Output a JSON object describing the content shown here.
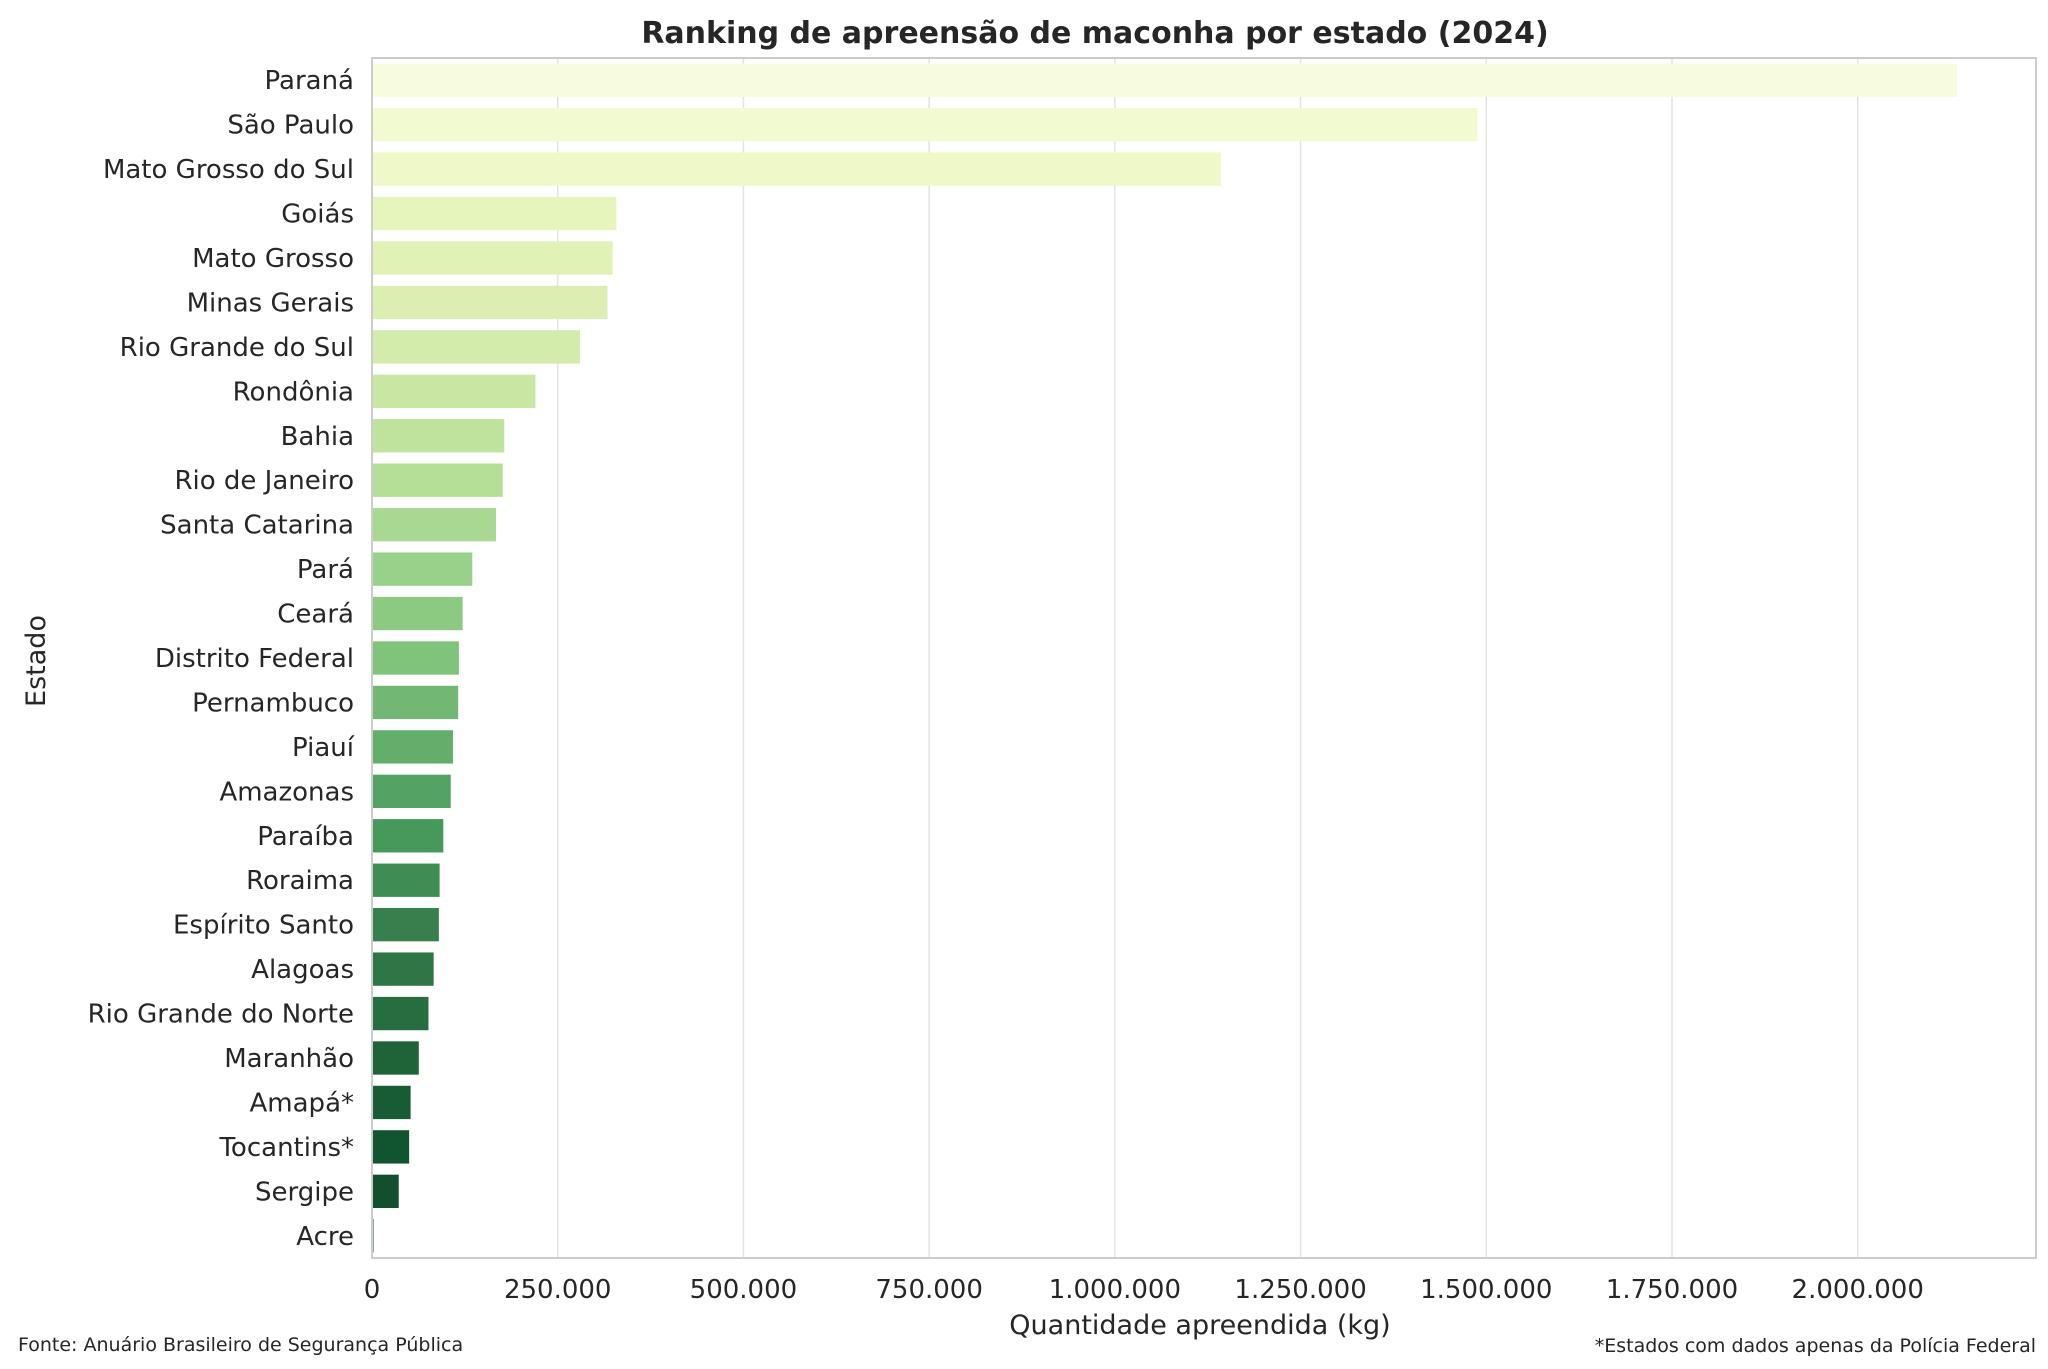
{
  "chart_data": {
    "type": "bar",
    "orientation": "horizontal",
    "title": "Ranking de apreensão de maconha por estado (2024)",
    "xlabel": "Quantidade apreendida (kg)",
    "ylabel": "Estado",
    "xlim": [
      0,
      2240000
    ],
    "xticks": [
      0,
      250000,
      500000,
      750000,
      1000000,
      1250000,
      1500000,
      1750000,
      2000000
    ],
    "xtick_labels": [
      "0",
      "250.000",
      "500.000",
      "750.000",
      "1.000.000",
      "1.250.000",
      "1.500.000",
      "1.750.000",
      "2.000.000"
    ],
    "grid": "vertical",
    "categories": [
      "Paraná",
      "São Paulo",
      "Mato Grosso do Sul",
      "Goiás",
      "Mato Grosso",
      "Minas Gerais",
      "Rio Grande do Sul",
      "Rondônia",
      "Bahia",
      "Rio de Janeiro",
      "Santa Catarina",
      "Pará",
      "Ceará",
      "Distrito Federal",
      "Pernambuco",
      "Piauí",
      "Amazonas",
      "Paraíba",
      "Roraima",
      "Espírito Santo",
      "Alagoas",
      "Rio Grande do Norte",
      "Maranhão",
      "Amapá*",
      "Tocantins*",
      "Sergipe",
      "Acre"
    ],
    "values": [
      2134000,
      1488000,
      1143000,
      329000,
      324000,
      317000,
      280000,
      220000,
      178000,
      176000,
      167000,
      135000,
      122000,
      117000,
      116000,
      109000,
      106000,
      96000,
      91000,
      90000,
      83000,
      76000,
      63000,
      52000,
      50000,
      36000,
      2000
    ],
    "colors": [
      "#f7fcdf",
      "#f2fad1",
      "#eef8c8",
      "#e6f5bc",
      "#e1f2b6",
      "#daefb1",
      "#d3ecab",
      "#c9e7a2",
      "#bfe29d",
      "#b5de97",
      "#a8d891",
      "#98d18a",
      "#8cca82",
      "#80c47c",
      "#72b874",
      "#64ae6c",
      "#55a364",
      "#47985b",
      "#3f8c54",
      "#377f4d",
      "#2e7645",
      "#266d3f",
      "#1f6439",
      "#185c35",
      "#115530",
      "#124f2f",
      "#1e4f38"
    ],
    "notes": {
      "source": "Fonte: Anuário Brasileiro de Segurança Pública",
      "footnote": "*Estados com dados apenas da Polícia Federal"
    }
  }
}
